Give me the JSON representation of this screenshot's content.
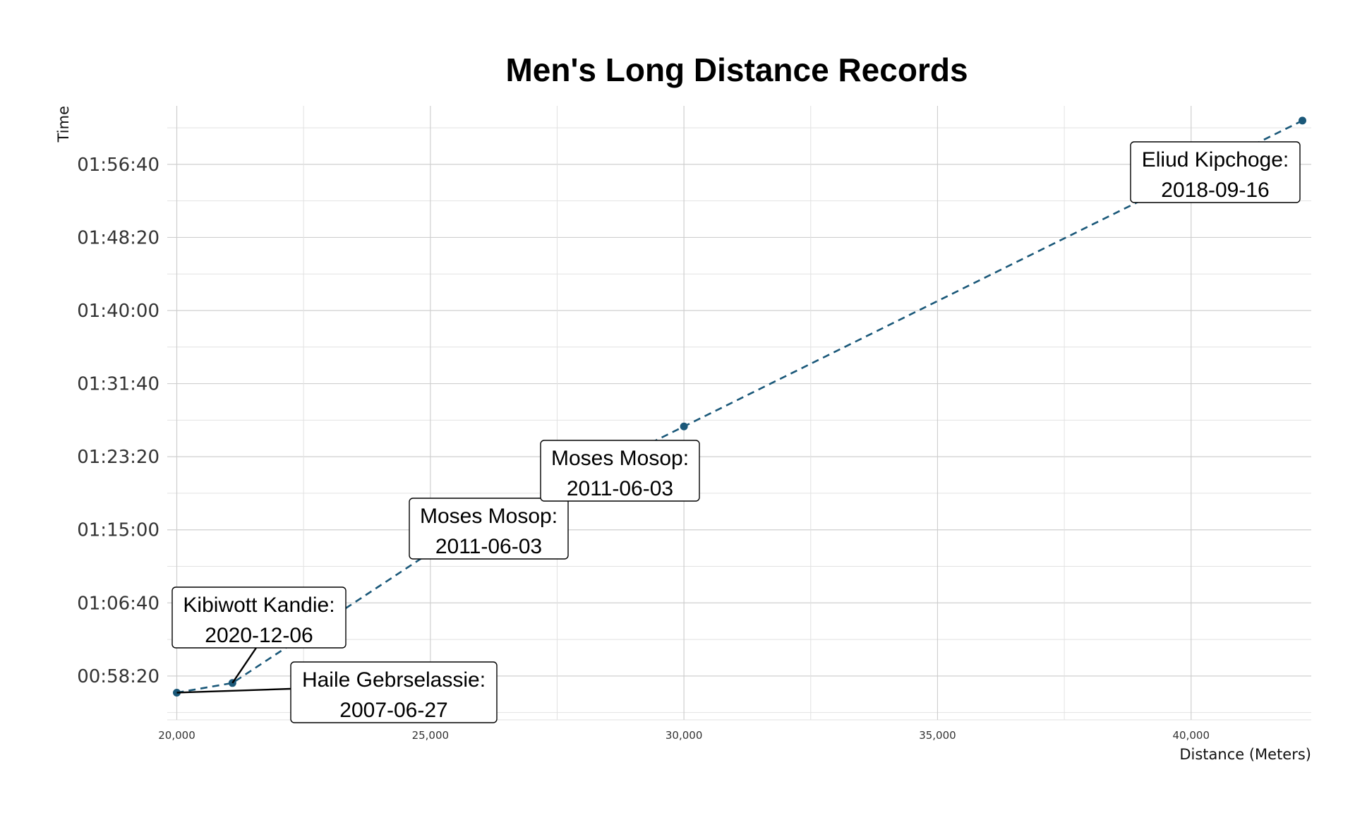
{
  "chart_data": {
    "type": "line",
    "title": "Men's Long Distance Records",
    "xlabel": "Distance (Meters)",
    "ylabel": "Time",
    "xlim": [
      20000,
      42195
    ],
    "ylim": [
      "00:53:20",
      "02:03:20"
    ],
    "x_ticks": [
      "20,000",
      "25,000",
      "30,000",
      "35,000",
      "40,000"
    ],
    "y_ticks": [
      "00:58:20",
      "01:06:40",
      "01:15:00",
      "01:23:20",
      "01:31:40",
      "01:40:00",
      "01:48:20",
      "01:56:40"
    ],
    "grid": true,
    "line_style": "dashed",
    "series_color": "#1a5879",
    "points": [
      {
        "x": 20000,
        "y": "00:56:26",
        "label_name": "Haile Gebrselassie:",
        "label_date": "2007-06-27"
      },
      {
        "x": 21097,
        "y": "00:57:32",
        "label_name": "Kibiwott Kandie:",
        "label_date": "2020-12-06"
      },
      {
        "x": 25000,
        "y": "01:12:25",
        "label_name": "Moses Mosop:",
        "label_date": "2011-06-03"
      },
      {
        "x": 30000,
        "y": "01:26:47",
        "label_name": "Moses Mosop:",
        "label_date": "2011-06-03"
      },
      {
        "x": 42195,
        "y": "02:01:39",
        "label_name": "Eliud Kipchoge:",
        "label_date": "2018-09-16"
      }
    ]
  }
}
